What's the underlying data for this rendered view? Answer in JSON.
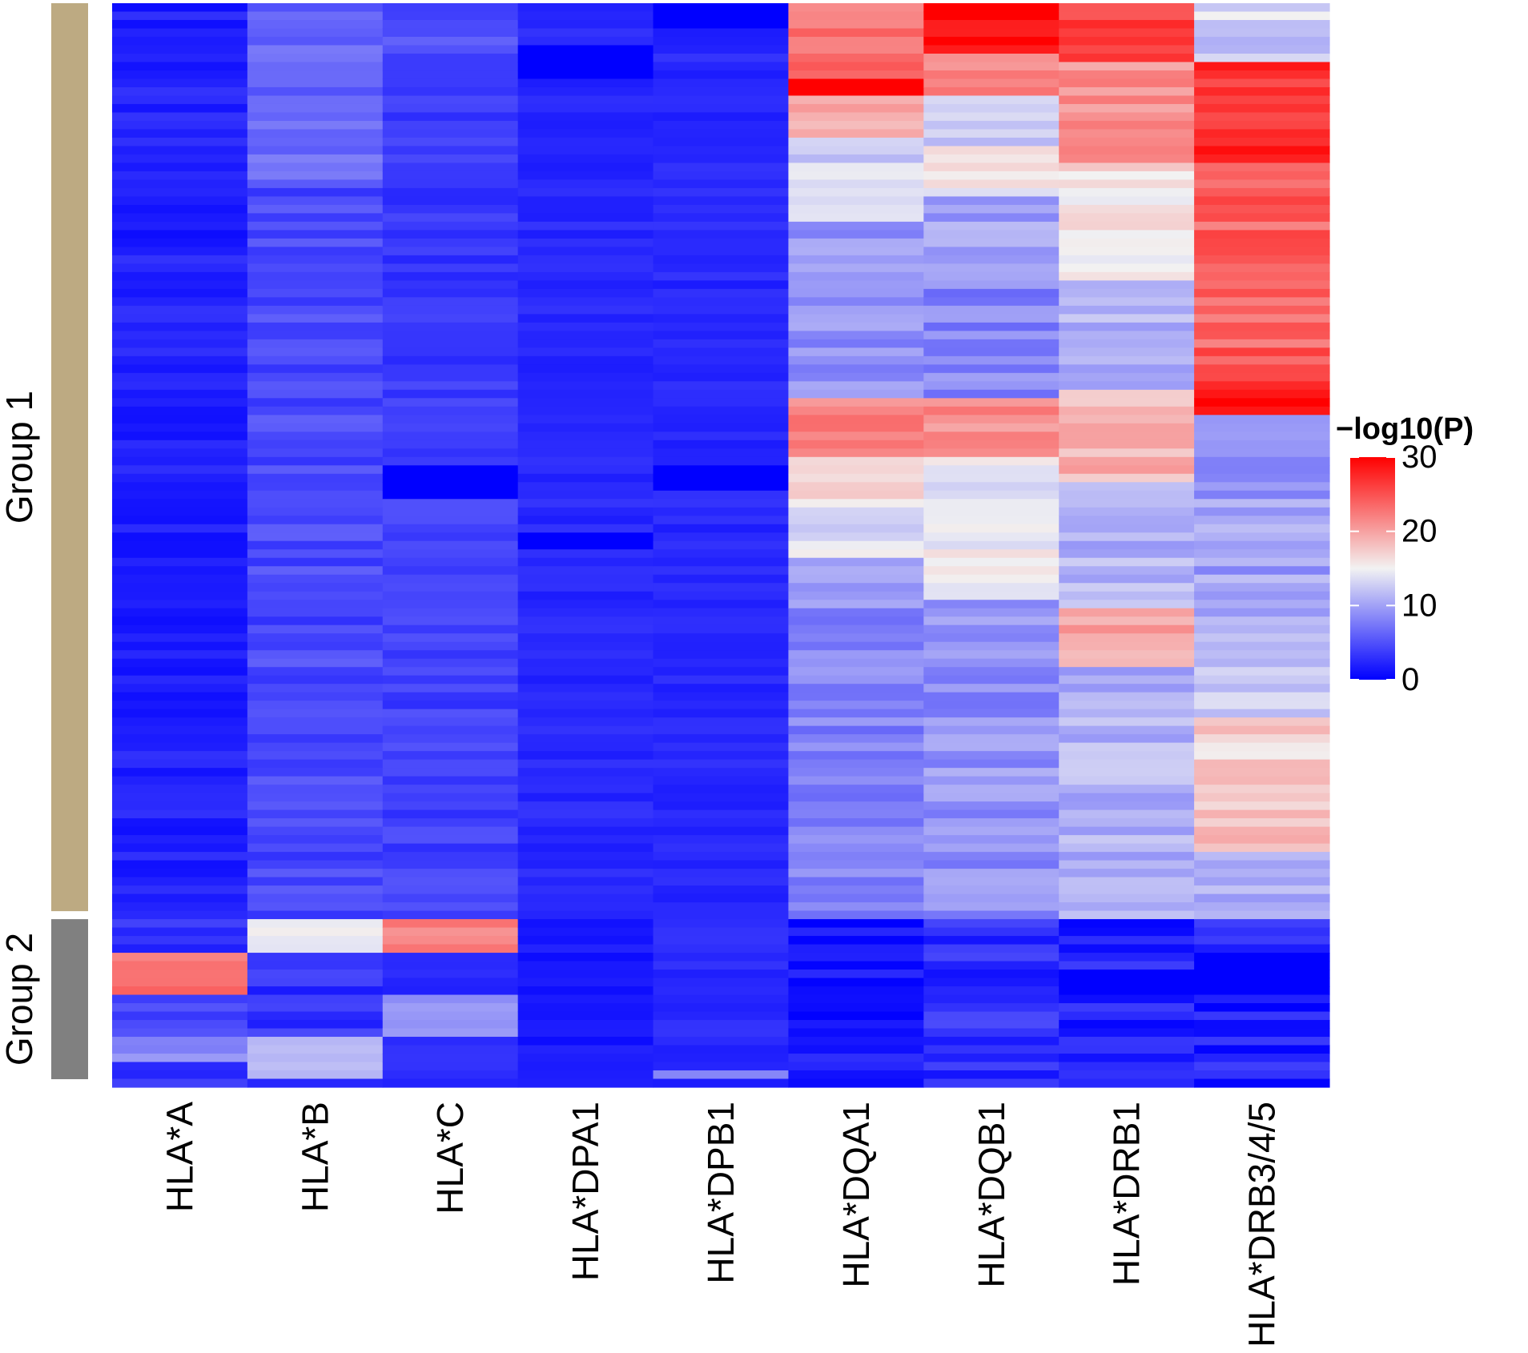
{
  "chart_data": {
    "type": "heatmap",
    "title": "",
    "xlabel": "",
    "ylabel": "",
    "columns": [
      "HLA*A",
      "HLA*B",
      "HLA*C",
      "HLA*DPA1",
      "HLA*DPB1",
      "HLA*DQA1",
      "HLA*DQB1",
      "HLA*DRB1",
      "HLA*DRB3/4/5"
    ],
    "row_groups": [
      {
        "name": "Group 1",
        "rows": 109,
        "color": "#BDAA82"
      },
      {
        "name": "Group 2",
        "rows": 20,
        "color": "#808080"
      }
    ],
    "colorbar": {
      "title": "−log10(P)",
      "ticks": [
        0,
        10,
        20,
        30
      ],
      "range": [
        0,
        30
      ],
      "low_color": "#0000FF",
      "mid_color": "#F2F2F2",
      "high_color": "#FF0000",
      "mid_value": 15
    },
    "column_profiles": {
      "HLA*A": {
        "segments": [
          [
            0,
            108,
            2
          ],
          [
            109,
            112,
            3
          ],
          [
            113,
            117,
            23
          ],
          [
            118,
            122,
            4
          ],
          [
            123,
            125,
            9
          ],
          [
            126,
            128,
            3
          ]
        ],
        "jitter": 1.2,
        "dark": []
      },
      "HLA*B": {
        "segments": [
          [
            0,
            4,
            6
          ],
          [
            5,
            20,
            6.5
          ],
          [
            21,
            108,
            4.5
          ],
          [
            109,
            112,
            14
          ],
          [
            113,
            122,
            3
          ],
          [
            123,
            127,
            11
          ],
          [
            128,
            128,
            3
          ]
        ],
        "jitter": 1.5,
        "dark": []
      },
      "HLA*C": {
        "segments": [
          [
            0,
            5,
            5
          ],
          [
            6,
            49,
            3.5
          ],
          [
            50,
            108,
            4
          ],
          [
            109,
            112,
            22
          ],
          [
            113,
            117,
            3
          ],
          [
            118,
            122,
            9
          ],
          [
            123,
            128,
            3
          ]
        ],
        "jitter": 1.2,
        "dark": [
          55,
          56,
          57,
          58
        ]
      },
      "HLA*DPA1": {
        "segments": [
          [
            0,
            108,
            2.5
          ],
          [
            109,
            128,
            1.5
          ]
        ],
        "jitter": 0.8,
        "dark": [
          5,
          6,
          7,
          8,
          63,
          64
        ]
      },
      "HLA*DPB1": {
        "segments": [
          [
            0,
            108,
            2.5
          ],
          [
            109,
            126,
            2.5
          ],
          [
            127,
            127,
            9
          ],
          [
            128,
            128,
            2
          ]
        ],
        "jitter": 0.8,
        "dark": [
          0,
          1,
          2,
          55,
          56,
          57
        ]
      },
      "HLA*DQA1": {
        "segments": [
          [
            0,
            8,
            23
          ],
          [
            9,
            10,
            30
          ],
          [
            11,
            15,
            19
          ],
          [
            16,
            25,
            13
          ],
          [
            26,
            46,
            9
          ],
          [
            47,
            53,
            22
          ],
          [
            54,
            59,
            17
          ],
          [
            60,
            65,
            14
          ],
          [
            66,
            72,
            9
          ],
          [
            73,
            108,
            8
          ],
          [
            109,
            128,
            1.5
          ]
        ],
        "jitter": 1.8,
        "dark": []
      },
      "HLA*DQB1": {
        "segments": [
          [
            0,
            5,
            30
          ],
          [
            6,
            10,
            22
          ],
          [
            11,
            16,
            12
          ],
          [
            17,
            22,
            15
          ],
          [
            23,
            33,
            10
          ],
          [
            34,
            46,
            8
          ],
          [
            47,
            53,
            21
          ],
          [
            54,
            62,
            14
          ],
          [
            63,
            70,
            15
          ],
          [
            71,
            108,
            9
          ],
          [
            109,
            128,
            3
          ]
        ],
        "jitter": 2.0,
        "dark": []
      },
      "HLA*DRB1": {
        "segments": [
          [
            0,
            6,
            26
          ],
          [
            7,
            18,
            21
          ],
          [
            19,
            32,
            16
          ],
          [
            33,
            45,
            11
          ],
          [
            46,
            56,
            19
          ],
          [
            57,
            71,
            11
          ],
          [
            72,
            78,
            20
          ],
          [
            79,
            108,
            11
          ],
          [
            109,
            128,
            2
          ]
        ],
        "jitter": 1.8,
        "dark": [
          115,
          116,
          117
        ]
      },
      "HLA*DRB3/4/5": {
        "segments": [
          [
            0,
            6,
            13
          ],
          [
            7,
            18,
            27
          ],
          [
            19,
            20,
            22
          ],
          [
            21,
            44,
            24
          ],
          [
            45,
            48,
            29
          ],
          [
            49,
            56,
            8
          ],
          [
            57,
            72,
            10
          ],
          [
            73,
            84,
            13
          ],
          [
            85,
            96,
            17
          ],
          [
            97,
            100,
            19
          ],
          [
            101,
            108,
            11
          ],
          [
            109,
            128,
            2
          ]
        ],
        "jitter": 2.2,
        "dark": [
          113,
          114,
          115,
          116,
          117
        ]
      }
    }
  }
}
